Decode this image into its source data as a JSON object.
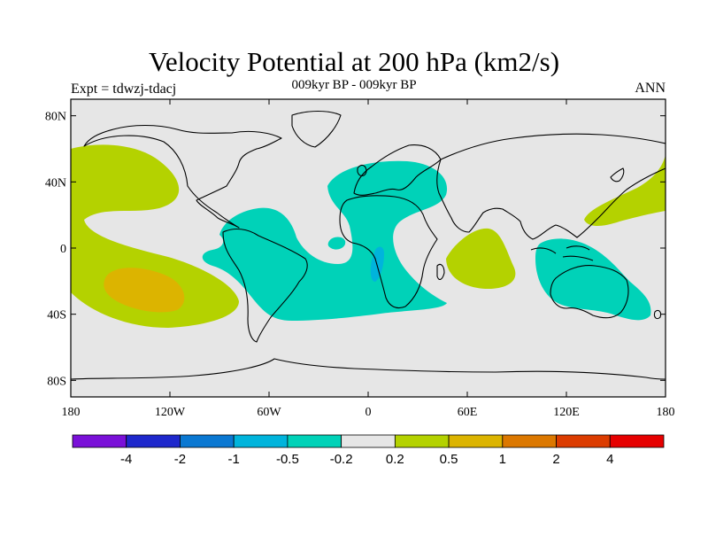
{
  "header": {
    "title": "Velocity Potential at 200 hPa (km2/s)",
    "subtitle": "009kyr BP - 009kyr BP",
    "left_label": "Expt = tdwzj-tdacj",
    "right_label": "ANN"
  },
  "map": {
    "projection": "cylindrical-equidistant",
    "lon_range": [
      -180,
      180
    ],
    "lat_range": [
      -90,
      90
    ],
    "background_color": "#e6e6e6",
    "coastline_color": "#000000",
    "lat_ticks": [
      {
        "value": 80,
        "label": "80N"
      },
      {
        "value": 40,
        "label": "40N"
      },
      {
        "value": 0,
        "label": "0"
      },
      {
        "value": -40,
        "label": "40S"
      },
      {
        "value": -80,
        "label": "80S"
      }
    ],
    "lon_ticks": [
      {
        "value": -180,
        "label": "180"
      },
      {
        "value": -120,
        "label": "120W"
      },
      {
        "value": -60,
        "label": "60W"
      },
      {
        "value": 0,
        "label": "0"
      },
      {
        "value": 60,
        "label": "60E"
      },
      {
        "value": 120,
        "label": "120E"
      },
      {
        "value": 180,
        "label": "180"
      }
    ]
  },
  "colorbar": {
    "colors": [
      "#7a10d8",
      "#1e28cc",
      "#0a78d2",
      "#00b4dc",
      "#00d2b8",
      "#e6e6e6",
      "#b4d200",
      "#dcb400",
      "#dc7800",
      "#dc3c00",
      "#e60000"
    ],
    "labels": [
      "-4",
      "-2",
      "-1",
      "-0.5",
      "-0.2",
      "0.2",
      "0.5",
      "1",
      "2",
      "4"
    ]
  },
  "field_regions": [
    {
      "name": "pacific-positive-outer",
      "level": "0.2 to 0.5",
      "color": "#b4d200"
    },
    {
      "name": "pacific-positive-core",
      "level": "0.5 to 1",
      "color": "#dcb400"
    },
    {
      "name": "atlantic-africa-negative",
      "level": "-0.5 to -0.2",
      "color": "#00d2b8"
    },
    {
      "name": "south-atlantic-negative-core",
      "level": "-1 to -0.5",
      "color": "#00b4dc"
    },
    {
      "name": "indian-ocean-positive",
      "level": "0.2 to 0.5",
      "color": "#b4d200"
    },
    {
      "name": "maritime-australia-negative",
      "level": "-0.5 to -0.2",
      "color": "#00d2b8"
    },
    {
      "name": "north-pacific-east-asia-positive",
      "level": "0.2 to 0.5",
      "color": "#b4d200"
    }
  ]
}
